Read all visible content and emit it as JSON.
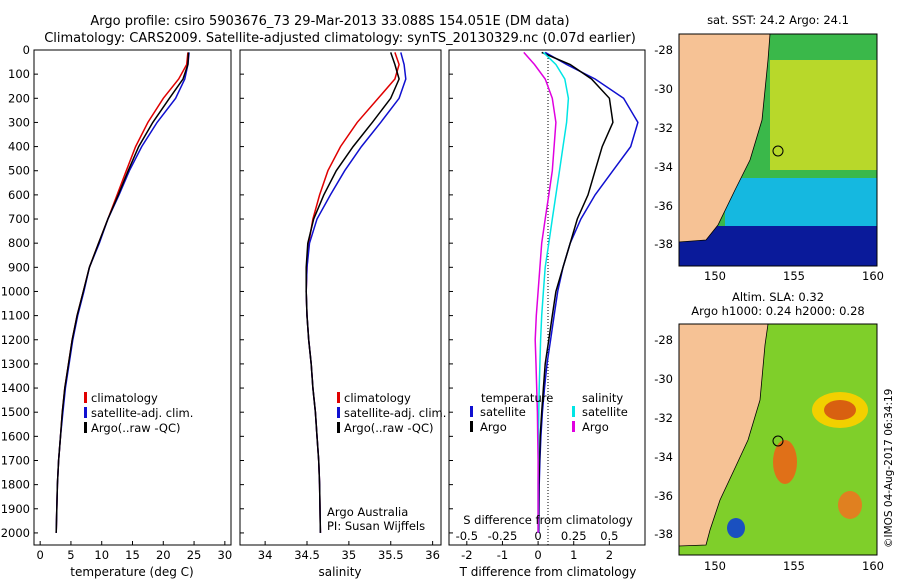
{
  "header": {
    "line1": "Argo profile: csiro 5903676_73 29-Mar-2013 33.088S 154.051E (DM data)",
    "line2": "Climatology: CARS2009. Satellite-adjusted climatology: synTS_20130329.nc (0.07d earlier)"
  },
  "colors": {
    "climatology": "#e00000",
    "satellite": "#1010d0",
    "argo": "#000000",
    "sat_salinity": "#00e5e5",
    "argo_salinity": "#e000e0",
    "land": "#f6c295",
    "ocean_cold": "#0a1a9a",
    "ocean_warm": "#c8d800"
  },
  "chart_data": [
    {
      "type": "line",
      "id": "temperature",
      "xlabel": "temperature (deg C)",
      "ylabel": "",
      "xlim": [
        -1,
        31
      ],
      "ylim": [
        2050,
        0
      ],
      "xticks": [
        0,
        5,
        10,
        15,
        20,
        25,
        30
      ],
      "yticks": [
        0,
        100,
        200,
        300,
        400,
        500,
        600,
        700,
        800,
        900,
        1000,
        1100,
        1200,
        1300,
        1400,
        1500,
        1600,
        1700,
        1800,
        1900,
        2000
      ],
      "legend": [
        "climatology",
        "satellite-adj. clim.",
        "Argo(..raw -QC)"
      ],
      "series": [
        {
          "name": "climatology",
          "color": "#e00000",
          "x": [
            24,
            23.8,
            22.5,
            20,
            17.5,
            15.5,
            14,
            12.5,
            11,
            9.5,
            8,
            7,
            6,
            5.2,
            4.6,
            4,
            3.6,
            3.3,
            3,
            2.8,
            2.6
          ],
          "y": [
            10,
            60,
            120,
            200,
            300,
            400,
            500,
            600,
            700,
            800,
            900,
            1000,
            1100,
            1200,
            1300,
            1400,
            1500,
            1600,
            1700,
            1800,
            2000
          ]
        },
        {
          "name": "satellite-adj. clim.",
          "color": "#1010d0",
          "x": [
            24.2,
            24,
            23.5,
            22,
            19,
            16.5,
            14.5,
            12.8,
            11,
            9.6,
            8,
            7.1,
            6.1,
            5.3,
            4.7,
            4.1,
            3.7,
            3.3,
            3,
            2.8,
            2.6
          ],
          "y": [
            10,
            60,
            120,
            200,
            300,
            400,
            500,
            600,
            700,
            800,
            900,
            1000,
            1100,
            1200,
            1300,
            1400,
            1500,
            1600,
            1700,
            1800,
            2000
          ]
        },
        {
          "name": "Argo(..raw -QC)",
          "color": "#000000",
          "x": [
            24.1,
            24,
            23.2,
            21,
            18.3,
            16,
            14.3,
            12.7,
            11,
            9.5,
            8,
            7,
            6,
            5.2,
            4.6,
            4,
            3.6,
            3.3,
            3,
            2.8,
            2.6
          ],
          "y": [
            10,
            60,
            120,
            200,
            300,
            400,
            500,
            600,
            700,
            800,
            900,
            1000,
            1100,
            1200,
            1300,
            1400,
            1500,
            1600,
            1700,
            1800,
            2000
          ]
        }
      ]
    },
    {
      "type": "line",
      "id": "salinity",
      "xlabel": "salinity",
      "xlim": [
        33.7,
        36.1
      ],
      "ylim": [
        2050,
        0
      ],
      "xticks": [
        34,
        34.5,
        35,
        35.5,
        36
      ],
      "legend": [
        "climatology",
        "satellite-adj. clim.",
        "Argo(..raw -QC)"
      ],
      "annotation": [
        "Argo Australia",
        "PI: Susan Wijffels"
      ],
      "series": [
        {
          "name": "climatology",
          "color": "#e00000",
          "x": [
            35.55,
            35.6,
            35.55,
            35.35,
            35.1,
            34.9,
            34.75,
            34.65,
            34.57,
            34.52,
            34.5,
            34.49,
            34.5,
            34.52,
            34.55,
            34.57,
            34.6,
            34.62,
            34.64,
            34.65,
            34.66
          ],
          "y": [
            10,
            60,
            120,
            200,
            300,
            400,
            500,
            600,
            700,
            800,
            900,
            1000,
            1100,
            1200,
            1300,
            1400,
            1500,
            1600,
            1700,
            1800,
            2000
          ]
        },
        {
          "name": "satellite-adj. clim.",
          "color": "#1010d0",
          "x": [
            35.62,
            35.66,
            35.68,
            35.6,
            35.38,
            35.15,
            34.95,
            34.78,
            34.62,
            34.53,
            34.5,
            34.49,
            34.5,
            34.52,
            34.55,
            34.57,
            34.6,
            34.62,
            34.64,
            34.65,
            34.66
          ],
          "y": [
            10,
            60,
            120,
            200,
            300,
            400,
            500,
            600,
            700,
            800,
            900,
            1000,
            1100,
            1200,
            1300,
            1400,
            1500,
            1600,
            1700,
            1800,
            2000
          ]
        },
        {
          "name": "Argo(..raw -QC)",
          "color": "#000000",
          "x": [
            35.5,
            35.55,
            35.6,
            35.5,
            35.28,
            35.05,
            34.85,
            34.7,
            34.58,
            34.51,
            34.49,
            34.49,
            34.5,
            34.52,
            34.55,
            34.57,
            34.6,
            34.62,
            34.64,
            34.65,
            34.66
          ],
          "y": [
            10,
            60,
            120,
            200,
            300,
            400,
            500,
            600,
            700,
            800,
            900,
            1000,
            1100,
            1200,
            1300,
            1400,
            1500,
            1600,
            1700,
            1800,
            2000
          ]
        }
      ]
    },
    {
      "type": "line",
      "id": "difference",
      "xlabel": "T difference from climatology",
      "xlabel_top": "S difference from climatology",
      "xlim": [
        -2.5,
        3
      ],
      "ylim": [
        2050,
        0
      ],
      "xticks": [
        -2,
        -1,
        0,
        1,
        2
      ],
      "xticks_top": [
        "-0.5",
        "-0.25",
        "0",
        "0.25",
        "0.5"
      ],
      "legend_titles": [
        "temperature",
        "salinity"
      ],
      "legend": [
        "satellite",
        "Argo",
        "satellite",
        "Argo"
      ],
      "series": [
        {
          "name": "temperature satellite",
          "color": "#1010d0",
          "x": [
            0.2,
            0.8,
            1.6,
            2.4,
            2.8,
            2.6,
            2.1,
            1.6,
            1.2,
            0.9,
            0.7,
            0.55,
            0.45,
            0.35,
            0.25,
            0.18,
            0.12,
            0.08,
            0.05,
            0.03,
            0.02
          ],
          "y": [
            10,
            60,
            120,
            200,
            300,
            400,
            500,
            600,
            700,
            800,
            900,
            1000,
            1100,
            1200,
            1300,
            1400,
            1500,
            1600,
            1700,
            1800,
            2000
          ]
        },
        {
          "name": "temperature Argo",
          "color": "#000000",
          "x": [
            0.1,
            0.9,
            1.5,
            2,
            2.1,
            1.8,
            1.6,
            1.4,
            1.1,
            0.9,
            0.7,
            0.5,
            0.4,
            0.3,
            0.2,
            0.15,
            0.1,
            0.06,
            0.04,
            0.02,
            0.01
          ],
          "y": [
            10,
            60,
            120,
            200,
            300,
            400,
            500,
            600,
            700,
            800,
            900,
            1000,
            1100,
            1200,
            1300,
            1400,
            1500,
            1600,
            1700,
            1800,
            2000
          ]
        },
        {
          "name": "salinity satellite",
          "color": "#00e5e5",
          "x": [
            0.15,
            0.5,
            0.75,
            0.85,
            0.8,
            0.7,
            0.6,
            0.5,
            0.4,
            0.3,
            0.2,
            0.15,
            0.1,
            0.07,
            0.05,
            0.03,
            0.02,
            0.01,
            0.01,
            0,
            0
          ],
          "y": [
            10,
            60,
            120,
            200,
            300,
            400,
            500,
            600,
            700,
            800,
            900,
            1000,
            1100,
            1200,
            1300,
            1400,
            1500,
            1600,
            1700,
            1800,
            2000
          ]
        },
        {
          "name": "salinity Argo",
          "color": "#e000e0",
          "x": [
            -0.4,
            -0.1,
            0.2,
            0.4,
            0.5,
            0.45,
            0.4,
            0.3,
            0.2,
            0.1,
            0.05,
            0,
            -0.05,
            -0.08,
            -0.06,
            -0.04,
            -0.02,
            -0.01,
            0,
            0,
            0
          ],
          "y": [
            10,
            60,
            120,
            200,
            300,
            400,
            500,
            600,
            700,
            800,
            900,
            1000,
            1100,
            1200,
            1300,
            1400,
            1500,
            1600,
            1700,
            1800,
            2000
          ]
        }
      ]
    }
  ],
  "maps": [
    {
      "id": "sst-map",
      "title": "sat. SST: 24.2  Argo: 24.1",
      "lat_ticks": [
        "-28",
        "-30",
        "-32",
        "-34",
        "-36",
        "-38"
      ],
      "lon_ticks": [
        "150",
        "155",
        "160"
      ],
      "profile_lon": 154.05,
      "profile_lat": -33.09
    },
    {
      "id": "sla-map",
      "title1": "Altim. SLA: 0.32",
      "title2": "Argo h1000: 0.24 h2000: 0.28",
      "lat_ticks": [
        "-28",
        "-30",
        "-32",
        "-34",
        "-36",
        "-38"
      ],
      "lon_ticks": [
        "150",
        "155",
        "160"
      ],
      "profile_lon": 154.05,
      "profile_lat": -33.09
    }
  ],
  "timestamp": "©IMOS 04-Aug-2017 06:34:19"
}
